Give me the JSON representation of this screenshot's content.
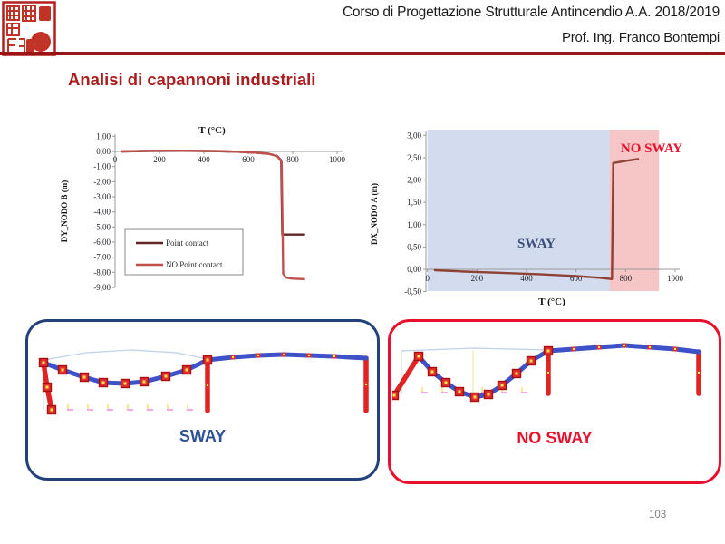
{
  "header": {
    "course_title": "Corso di Progettazione Strutturale Antincendio A.A. 2018/2019",
    "professor": "Prof. Ing. Franco Bontempi",
    "rule_color": "#9B1414",
    "logo_icon": "red-seal-stamp-icon"
  },
  "slide": {
    "title": "Analisi di capannoni industriali",
    "title_color": "#A91D1D"
  },
  "chart_data": [
    {
      "type": "line",
      "xlabel": "T (°C)",
      "xlabel_position": "top",
      "ylabel": "DY_NODO B (m)",
      "xlim": [
        0,
        1000
      ],
      "ylim": [
        -9,
        1
      ],
      "grid": false,
      "xticks": {
        "values": [
          0,
          200,
          400,
          600,
          800,
          1000
        ],
        "labels": [
          "0",
          "200",
          "400",
          "600",
          "800",
          "1000"
        ]
      },
      "yticks": {
        "values": [
          1,
          0,
          -1,
          -2,
          -3,
          -4,
          -5,
          -6,
          -7,
          -8,
          -9
        ],
        "labels": [
          "1,00",
          "0,00",
          "-1,00",
          "-2,00",
          "-3,00",
          "-4,00",
          "-5,00",
          "-6,00",
          "-7,00",
          "-8,00",
          "-9,00"
        ]
      },
      "legend_position": "inside-bottom-left",
      "series": [
        {
          "name": "Point contact",
          "color": "#632423",
          "points": [
            [
              30,
              0
            ],
            [
              150,
              0.03
            ],
            [
              300,
              0.04
            ],
            [
              450,
              0.02
            ],
            [
              550,
              -0.02
            ],
            [
              630,
              -0.08
            ],
            [
              690,
              -0.15
            ],
            [
              730,
              -0.3
            ],
            [
              748,
              -0.6
            ],
            [
              753,
              -5.5
            ],
            [
              770,
              -5.5
            ],
            [
              852,
              -5.5
            ]
          ]
        },
        {
          "name": "NO Point contact",
          "color": "#C0504D",
          "points": [
            [
              30,
              0
            ],
            [
              150,
              0.04
            ],
            [
              300,
              0.05
            ],
            [
              450,
              0.03
            ],
            [
              550,
              -0.02
            ],
            [
              630,
              -0.08
            ],
            [
              690,
              -0.15
            ],
            [
              730,
              -0.3
            ],
            [
              750,
              -0.7
            ],
            [
              757,
              -8.1
            ],
            [
              770,
              -8.35
            ],
            [
              800,
              -8.42
            ],
            [
              852,
              -8.45
            ]
          ]
        }
      ]
    },
    {
      "type": "line",
      "xlabel": "T (°C)",
      "xlabel_position": "bottom",
      "ylabel": "DX_NODO A (m)",
      "xlim": [
        0,
        1000
      ],
      "ylim": [
        -0.5,
        3
      ],
      "grid": false,
      "xticks": {
        "values": [
          0,
          200,
          400,
          600,
          800,
          1000
        ],
        "labels": [
          "0",
          "200",
          "400",
          "600",
          "800",
          "1000"
        ]
      },
      "yticks": {
        "values": [
          3,
          2.5,
          2,
          1.5,
          1,
          0.5,
          0,
          -0.5
        ],
        "labels": [
          "3,00",
          "2,50",
          "2,00",
          "1,50",
          "1,00",
          "0,50",
          "0,00",
          "-0,50"
        ]
      },
      "regions": [
        {
          "label": "SWAY",
          "from": 0,
          "to": 735,
          "fill": "#D3DCEE",
          "label_color": "#3A4E7A"
        },
        {
          "label": "NO SWAY",
          "from": 735,
          "to": 935,
          "fill": "#F6C5C5",
          "label_color": "#E8112D"
        }
      ],
      "series": [
        {
          "name": "DX_NODO A",
          "color": "#8E4233",
          "points": [
            [
              30,
              -0.02
            ],
            [
              150,
              -0.05
            ],
            [
              300,
              -0.08
            ],
            [
              450,
              -0.11
            ],
            [
              600,
              -0.15
            ],
            [
              700,
              -0.19
            ],
            [
              745,
              -0.22
            ],
            [
              750,
              2.38
            ],
            [
              800,
              2.43
            ],
            [
              850,
              2.47
            ]
          ]
        }
      ]
    }
  ],
  "panels": {
    "sway": {
      "label": "SWAY",
      "label_color": "#2E5395",
      "border_color": "#24427A"
    },
    "no_sway": {
      "label": "NO SWAY",
      "label_color": "#E8112D",
      "border_color": "#E8112D"
    }
  },
  "footer": {
    "page_number": "103"
  }
}
